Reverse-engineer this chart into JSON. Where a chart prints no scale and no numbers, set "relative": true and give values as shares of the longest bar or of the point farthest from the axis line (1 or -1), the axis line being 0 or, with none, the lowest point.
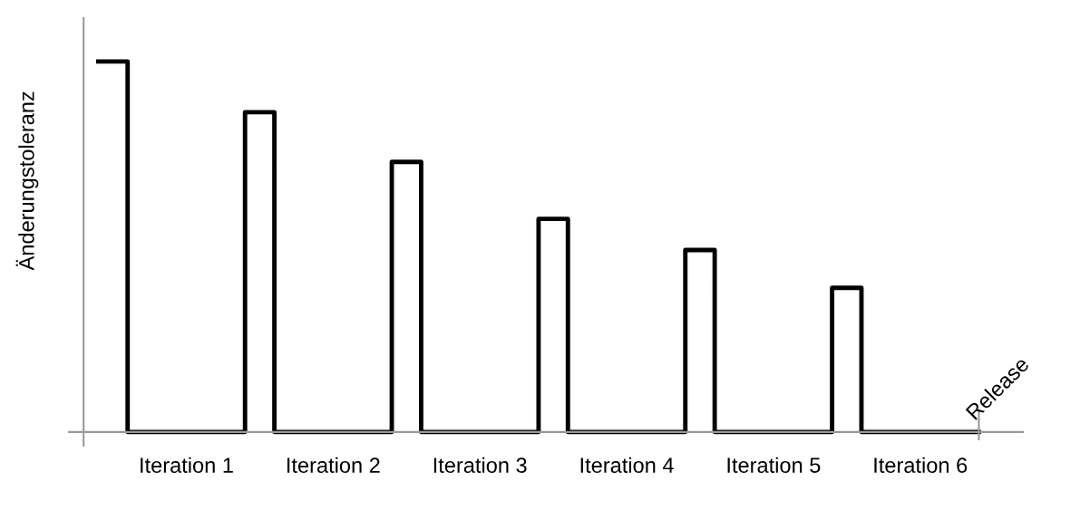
{
  "chart_data": {
    "type": "step",
    "relative": true,
    "ylabel": "Änderungstoleranz",
    "color": "#000000",
    "categories": [
      null,
      null,
      null,
      "Iteration 1",
      null,
      null,
      null,
      null,
      "Iteration 2",
      null,
      null,
      null,
      null,
      "Iteration 3",
      null,
      null,
      null,
      null,
      "Iteration 4",
      null,
      null,
      null,
      null,
      "Iteration 5",
      null,
      null,
      null,
      null,
      "Iteration 6",
      null,
      null
    ],
    "values": [
      1.0,
      0.0,
      0.0,
      0.0,
      0.0,
      0.863,
      0.0,
      0.0,
      0.0,
      0.0,
      0.729,
      0.0,
      0.0,
      0.0,
      0.0,
      0.575,
      0.0,
      0.0,
      0.0,
      0.0,
      0.491,
      0.0,
      0.0,
      0.0,
      0.0,
      0.389,
      0.0,
      0.0,
      0.0,
      0.0,
      0.0
    ],
    "annotations": [
      "Release"
    ],
    "grid": false,
    "marker": "none",
    "line_style": "solid"
  }
}
